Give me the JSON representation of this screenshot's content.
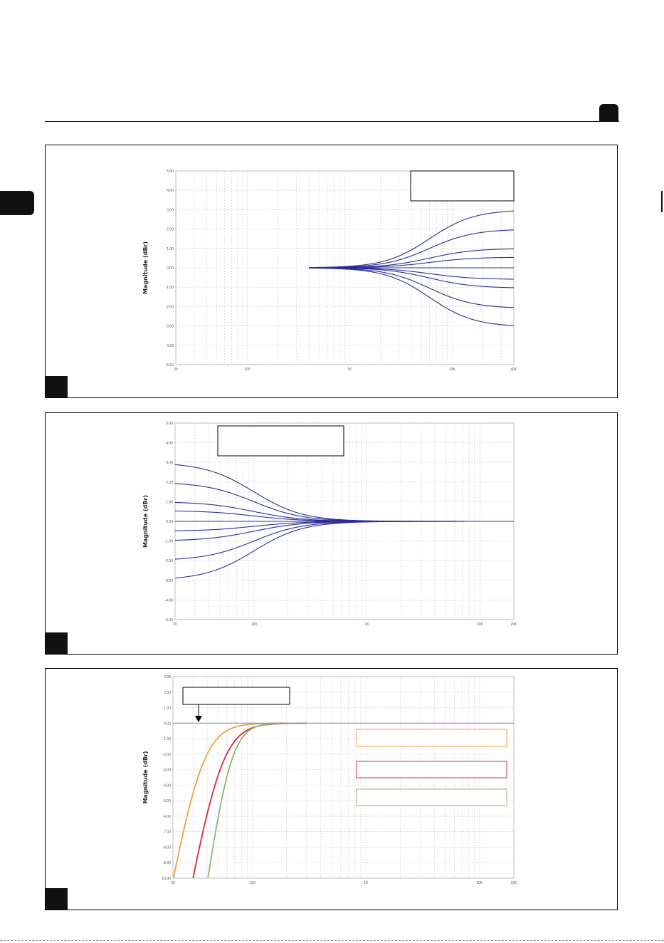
{
  "colors": {
    "curve_blue": "#2c2c96",
    "grid": "#c8c8c8",
    "orange": "#f0a040",
    "red": "#d42a40",
    "green": "#8ab870"
  },
  "chart_data": [
    {
      "type": "line",
      "ylabel": "Magnitude (dBr)",
      "x_scale": "log",
      "xlim": [
        20,
        40000
      ],
      "ylim": [
        -5,
        5
      ],
      "x_ticks": [
        20,
        100,
        1000,
        10000,
        40000
      ],
      "x_tick_labels": [
        "20",
        "100",
        "1K",
        "10K",
        "40K"
      ],
      "y_ticks": [
        5,
        4,
        3,
        2,
        1,
        0,
        -1,
        -2,
        -3,
        -4,
        -5
      ],
      "y_tick_labels": [
        "5.00",
        "4.00",
        "3.00",
        "2.00",
        "1.00",
        "0.00",
        "-1.00",
        "-2.00",
        "-3.00",
        "-4.00",
        "-5.00"
      ],
      "grid": true,
      "curve_model": "high-shelf",
      "x_start": 400,
      "corner_hz": 6000,
      "series": [
        {
          "gain": 3.0
        },
        {
          "gain": 2.0
        },
        {
          "gain": 1.0
        },
        {
          "gain": 0.55
        },
        {
          "gain": 0.0
        },
        {
          "gain": -0.6
        },
        {
          "gain": -1.05
        },
        {
          "gain": -2.1
        },
        {
          "gain": -3.05
        }
      ]
    },
    {
      "type": "line",
      "ylabel": "Magnitude (dBr)",
      "x_scale": "log",
      "xlim": [
        20,
        20000
      ],
      "ylim": [
        -5,
        5
      ],
      "x_ticks": [
        20,
        100,
        1000,
        10000,
        20000
      ],
      "x_tick_labels": [
        "20",
        "100",
        "1K",
        "10K",
        "20K"
      ],
      "y_ticks": [
        5,
        4,
        3,
        2,
        1,
        0,
        -1,
        -2,
        -3,
        -4,
        -5
      ],
      "y_tick_labels": [
        "5.00",
        "4.00",
        "3.00",
        "2.00",
        "1.00",
        "0.00",
        "-1.00",
        "-2.00",
        "-3.00",
        "-4.00",
        "-5.00"
      ],
      "grid": true,
      "curve_model": "low-shelf",
      "x_end": 20000,
      "corner_hz": 100,
      "series": [
        {
          "gain": 3.0
        },
        {
          "gain": 2.0
        },
        {
          "gain": 1.0
        },
        {
          "gain": 0.55
        },
        {
          "gain": 0.0
        },
        {
          "gain": -0.5
        },
        {
          "gain": -1.0
        },
        {
          "gain": -2.0
        },
        {
          "gain": -3.0
        }
      ]
    },
    {
      "type": "line",
      "ylabel": "Magnitude (dBr)",
      "x_scale": "log",
      "xlim": [
        20,
        20000
      ],
      "ylim": [
        -10,
        3
      ],
      "x_ticks": [
        20,
        100,
        1000,
        10000,
        20000
      ],
      "x_tick_labels": [
        "20",
        "100",
        "1K",
        "10K",
        "20K"
      ],
      "y_ticks": [
        3,
        2,
        1,
        0,
        -1,
        -2,
        -3,
        -4,
        -5,
        -6,
        -7,
        -8,
        -9,
        -10
      ],
      "y_tick_labels": [
        "3.00",
        "2.00",
        "1.00",
        "0.00",
        "-1.00",
        "-2.00",
        "-3.00",
        "-4.00",
        "-5.00",
        "-6.00",
        "-7.00",
        "-8.00",
        "-9.00",
        "-10.00"
      ],
      "grid": true,
      "reference_line": 0,
      "curve_model": "high-pass",
      "x_end": 300,
      "series": [
        {
          "color": "#f0a040",
          "corner_hz": 35,
          "order": 2
        },
        {
          "color": "#d42a40",
          "corner_hz": 52,
          "order": 2
        },
        {
          "color": "#8ab870",
          "corner_hz": 62,
          "order": 2.6
        }
      ]
    }
  ]
}
